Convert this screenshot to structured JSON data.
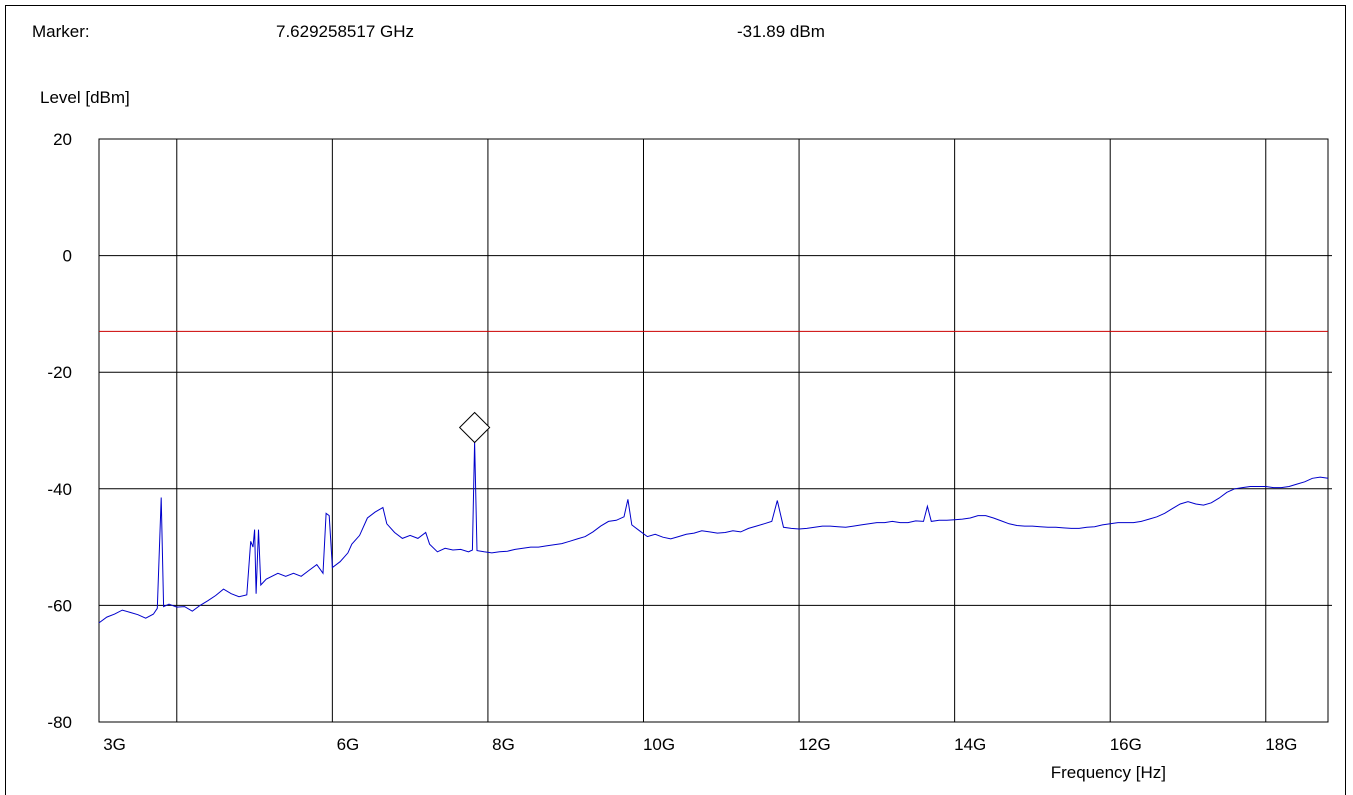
{
  "header": {
    "marker_label": "Marker:",
    "marker_frequency": "7.629258517 GHz",
    "marker_level": "-31.89 dBm"
  },
  "colors": {
    "trace": "#0000cc",
    "limit_line": "#cc0000",
    "grid": "#000000"
  },
  "chart_data": {
    "type": "line",
    "xlabel": "Frequency [Hz]",
    "ylabel": "Level [dBm]",
    "xlim": [
      2800000000.0,
      18600000000.0
    ],
    "ylim": [
      -80,
      20
    ],
    "grid": true,
    "x_ticks": [
      {
        "value": 3000000000.0,
        "label": "3G"
      },
      {
        "value": 6000000000.0,
        "label": "6G"
      },
      {
        "value": 8000000000.0,
        "label": "8G"
      },
      {
        "value": 10000000000.0,
        "label": "10G"
      },
      {
        "value": 12000000000.0,
        "label": "12G"
      },
      {
        "value": 14000000000.0,
        "label": "14G"
      },
      {
        "value": 16000000000.0,
        "label": "16G"
      },
      {
        "value": 18000000000.0,
        "label": "18G"
      }
    ],
    "x_gridlines": [
      3800000000.0,
      5800000000.0,
      7800000000.0,
      9800000000.0,
      11800000000.0,
      13800000000.0,
      15800000000.0,
      17800000000.0
    ],
    "y_ticks": [
      20,
      0,
      -20,
      -40,
      -60,
      -80
    ],
    "limit_line": -13,
    "marker": {
      "x": 7629258517.0,
      "y": -31.89
    },
    "series": [
      {
        "points": [
          [
            2800000000.0,
            -63
          ],
          [
            2900000000.0,
            -62
          ],
          [
            3000000000.0,
            -61.5
          ],
          [
            3100000000.0,
            -60.8
          ],
          [
            3200000000.0,
            -61.2
          ],
          [
            3300000000.0,
            -61.6
          ],
          [
            3400000000.0,
            -62.2
          ],
          [
            3500000000.0,
            -61.5
          ],
          [
            3550000000.0,
            -60.5
          ],
          [
            3600000000.0,
            -41.5
          ],
          [
            3630000000.0,
            -60.2
          ],
          [
            3700000000.0,
            -59.8
          ],
          [
            3800000000.0,
            -60.3
          ],
          [
            3900000000.0,
            -60.2
          ],
          [
            4000000000.0,
            -61
          ],
          [
            4100000000.0,
            -60
          ],
          [
            4200000000.0,
            -59.2
          ],
          [
            4300000000.0,
            -58.3
          ],
          [
            4400000000.0,
            -57.2
          ],
          [
            4500000000.0,
            -58
          ],
          [
            4600000000.0,
            -58.5
          ],
          [
            4700000000.0,
            -58.2
          ],
          [
            4750000000.0,
            -49
          ],
          [
            4780000000.0,
            -50
          ],
          [
            4800000000.0,
            -47
          ],
          [
            4820000000.0,
            -58
          ],
          [
            4850000000.0,
            -47
          ],
          [
            4880000000.0,
            -56.5
          ],
          [
            4950000000.0,
            -55.5
          ],
          [
            5100000000.0,
            -54.5
          ],
          [
            5200000000.0,
            -55
          ],
          [
            5300000000.0,
            -54.5
          ],
          [
            5400000000.0,
            -55
          ],
          [
            5500000000.0,
            -54
          ],
          [
            5600000000.0,
            -53
          ],
          [
            5680000000.0,
            -54.5
          ],
          [
            5720000000.0,
            -44.2
          ],
          [
            5760000000.0,
            -44.6
          ],
          [
            5800000000.0,
            -53.5
          ],
          [
            5900000000.0,
            -52.5
          ],
          [
            6000000000.0,
            -51
          ],
          [
            6050000000.0,
            -49.5
          ],
          [
            6150000000.0,
            -48
          ],
          [
            6250000000.0,
            -45
          ],
          [
            6350000000.0,
            -44
          ],
          [
            6450000000.0,
            -43.2
          ],
          [
            6500000000.0,
            -46
          ],
          [
            6600000000.0,
            -47.5
          ],
          [
            6700000000.0,
            -48.5
          ],
          [
            6800000000.0,
            -48
          ],
          [
            6900000000.0,
            -48.5
          ],
          [
            7000000000.0,
            -47.5
          ],
          [
            7050000000.0,
            -49.5
          ],
          [
            7150000000.0,
            -50.8
          ],
          [
            7250000000.0,
            -50.2
          ],
          [
            7350000000.0,
            -50.5
          ],
          [
            7450000000.0,
            -50.4
          ],
          [
            7550000000.0,
            -50.8
          ],
          [
            7600000000.0,
            -50.5
          ],
          [
            7629000000.0,
            -31.89
          ],
          [
            7660000000.0,
            -50.6
          ],
          [
            7750000000.0,
            -50.8
          ],
          [
            7850000000.0,
            -51
          ],
          [
            7950000000.0,
            -50.8
          ],
          [
            8050000000.0,
            -50.7
          ],
          [
            8150000000.0,
            -50.4
          ],
          [
            8250000000.0,
            -50.2
          ],
          [
            8350000000.0,
            -50
          ],
          [
            8450000000.0,
            -50
          ],
          [
            8550000000.0,
            -49.8
          ],
          [
            8650000000.0,
            -49.6
          ],
          [
            8750000000.0,
            -49.4
          ],
          [
            8850000000.0,
            -49
          ],
          [
            8950000000.0,
            -48.6
          ],
          [
            9050000000.0,
            -48.2
          ],
          [
            9150000000.0,
            -47.4
          ],
          [
            9250000000.0,
            -46.4
          ],
          [
            9350000000.0,
            -45.6
          ],
          [
            9450000000.0,
            -45.4
          ],
          [
            9550000000.0,
            -44.8
          ],
          [
            9600000000.0,
            -41.8
          ],
          [
            9650000000.0,
            -46.2
          ],
          [
            9750000000.0,
            -47.2
          ],
          [
            9850000000.0,
            -48.2
          ],
          [
            9950000000.0,
            -47.8
          ],
          [
            10050000000.0,
            -48.3
          ],
          [
            10150000000.0,
            -48.6
          ],
          [
            10250000000.0,
            -48.2
          ],
          [
            10350000000.0,
            -47.8
          ],
          [
            10450000000.0,
            -47.6
          ],
          [
            10550000000.0,
            -47.2
          ],
          [
            10650000000.0,
            -47.4
          ],
          [
            10750000000.0,
            -47.6
          ],
          [
            10850000000.0,
            -47.5
          ],
          [
            10950000000.0,
            -47.2
          ],
          [
            11050000000.0,
            -47.4
          ],
          [
            11150000000.0,
            -46.8
          ],
          [
            11250000000.0,
            -46.4
          ],
          [
            11350000000.0,
            -46
          ],
          [
            11450000000.0,
            -45.6
          ],
          [
            11520000000.0,
            -42
          ],
          [
            11600000000.0,
            -46.6
          ],
          [
            11700000000.0,
            -46.8
          ],
          [
            11800000000.0,
            -46.9
          ],
          [
            11900000000.0,
            -46.8
          ],
          [
            12000000000.0,
            -46.6
          ],
          [
            12100000000.0,
            -46.4
          ],
          [
            12200000000.0,
            -46.4
          ],
          [
            12300000000.0,
            -46.5
          ],
          [
            12400000000.0,
            -46.6
          ],
          [
            12500000000.0,
            -46.4
          ],
          [
            12600000000.0,
            -46.2
          ],
          [
            12700000000.0,
            -46
          ],
          [
            12800000000.0,
            -45.8
          ],
          [
            12900000000.0,
            -45.8
          ],
          [
            13000000000.0,
            -45.6
          ],
          [
            13100000000.0,
            -45.8
          ],
          [
            13200000000.0,
            -45.8
          ],
          [
            13300000000.0,
            -45.5
          ],
          [
            13400000000.0,
            -45.6
          ],
          [
            13450000000.0,
            -43
          ],
          [
            13500000000.0,
            -45.6
          ],
          [
            13600000000.0,
            -45.4
          ],
          [
            13700000000.0,
            -45.4
          ],
          [
            13800000000.0,
            -45.3
          ],
          [
            13900000000.0,
            -45.2
          ],
          [
            14000000000.0,
            -45
          ],
          [
            14100000000.0,
            -44.6
          ],
          [
            14200000000.0,
            -44.6
          ],
          [
            14300000000.0,
            -45
          ],
          [
            14400000000.0,
            -45.5
          ],
          [
            14500000000.0,
            -46
          ],
          [
            14600000000.0,
            -46.3
          ],
          [
            14700000000.0,
            -46.4
          ],
          [
            14800000000.0,
            -46.4
          ],
          [
            14900000000.0,
            -46.5
          ],
          [
            15000000000.0,
            -46.6
          ],
          [
            15100000000.0,
            -46.6
          ],
          [
            15200000000.0,
            -46.7
          ],
          [
            15300000000.0,
            -46.8
          ],
          [
            15400000000.0,
            -46.8
          ],
          [
            15500000000.0,
            -46.6
          ],
          [
            15600000000.0,
            -46.5
          ],
          [
            15700000000.0,
            -46.2
          ],
          [
            15800000000.0,
            -46
          ],
          [
            15900000000.0,
            -45.8
          ],
          [
            16000000000.0,
            -45.8
          ],
          [
            16100000000.0,
            -45.8
          ],
          [
            16200000000.0,
            -45.6
          ],
          [
            16300000000.0,
            -45.2
          ],
          [
            16400000000.0,
            -44.8
          ],
          [
            16500000000.0,
            -44.2
          ],
          [
            16600000000.0,
            -43.4
          ],
          [
            16700000000.0,
            -42.6
          ],
          [
            16800000000.0,
            -42.2
          ],
          [
            16900000000.0,
            -42.6
          ],
          [
            17000000000.0,
            -42.8
          ],
          [
            17100000000.0,
            -42.4
          ],
          [
            17200000000.0,
            -41.6
          ],
          [
            17300000000.0,
            -40.6
          ],
          [
            17400000000.0,
            -40
          ],
          [
            17500000000.0,
            -39.8
          ],
          [
            17600000000.0,
            -39.6
          ],
          [
            17700000000.0,
            -39.6
          ],
          [
            17800000000.0,
            -39.6
          ],
          [
            17900000000.0,
            -39.8
          ],
          [
            18000000000.0,
            -39.8
          ],
          [
            18100000000.0,
            -39.6
          ],
          [
            18200000000.0,
            -39.2
          ],
          [
            18300000000.0,
            -38.8
          ],
          [
            18400000000.0,
            -38.2
          ],
          [
            18500000000.0,
            -38
          ],
          [
            18600000000.0,
            -38.2
          ]
        ]
      }
    ]
  }
}
